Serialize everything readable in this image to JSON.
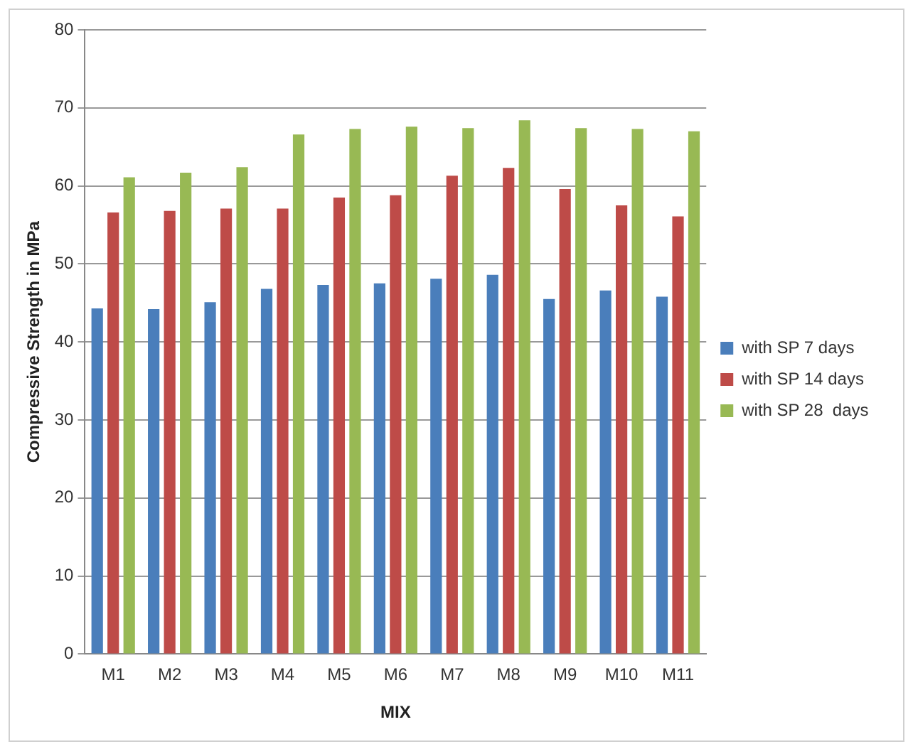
{
  "chart_data": {
    "type": "bar",
    "xlabel": "MIX",
    "ylabel": "Compressive Strength in MPa",
    "categories": [
      "M1",
      "M2",
      "M3",
      "M4",
      "M5",
      "M6",
      "M7",
      "M8",
      "M9",
      "M10",
      "M11"
    ],
    "series": [
      {
        "name": "with SP 7 days",
        "color": "#4a7ebb",
        "values": [
          44.3,
          44.2,
          45.1,
          46.8,
          47.3,
          47.5,
          48.1,
          48.6,
          45.5,
          46.6,
          45.8
        ]
      },
      {
        "name": "with SP 14 days",
        "color": "#be4b48",
        "values": [
          56.6,
          56.8,
          57.1,
          57.1,
          58.5,
          58.8,
          61.3,
          62.3,
          59.6,
          57.5,
          56.1
        ]
      },
      {
        "name": "with SP 28  days",
        "color": "#98b954",
        "values": [
          61.1,
          61.7,
          62.4,
          66.6,
          67.3,
          67.6,
          67.4,
          68.4,
          67.4,
          67.3,
          67.0
        ]
      }
    ],
    "ylim": [
      0,
      80
    ],
    "yticks": [
      0,
      10,
      20,
      30,
      40,
      50,
      60,
      70,
      80
    ],
    "grid": "y",
    "legend": "right"
  }
}
